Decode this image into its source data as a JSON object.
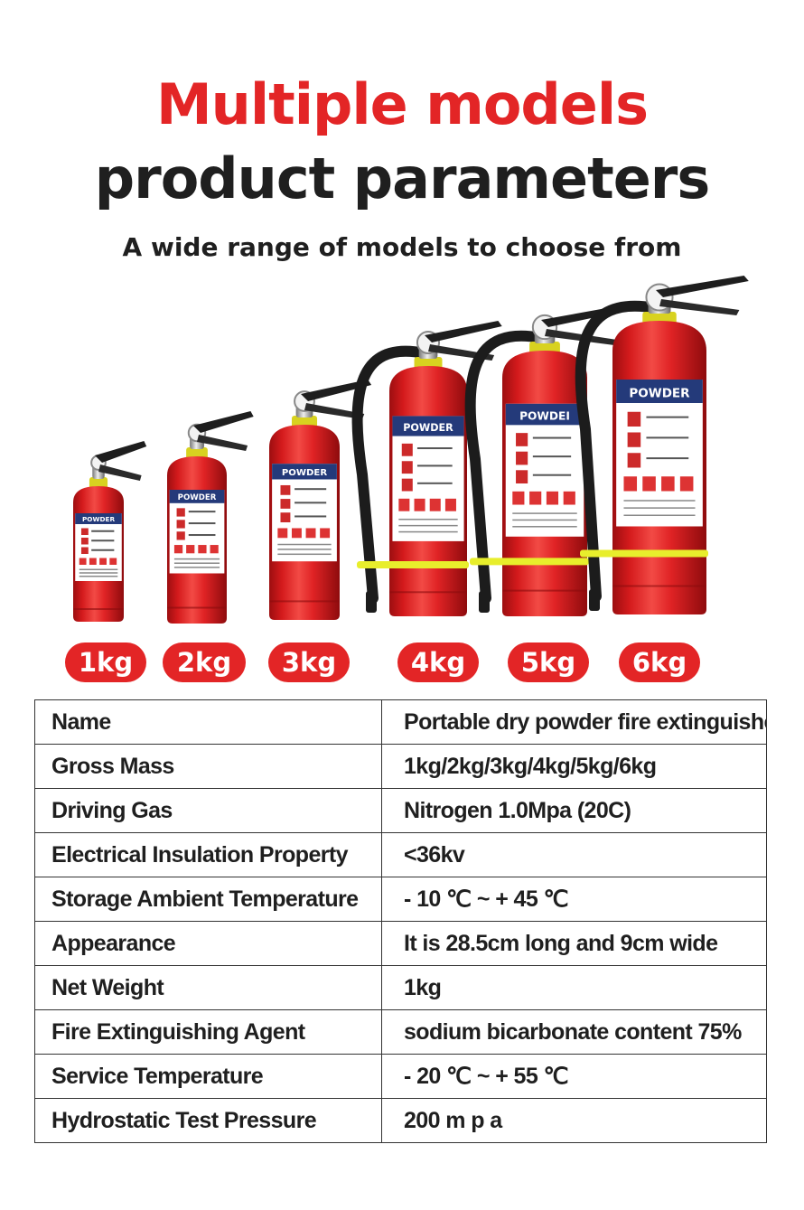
{
  "header": {
    "title_line1": "Multiple models",
    "title_line2": "product parameters",
    "subtitle": "A wide range of models to choose from"
  },
  "products": [
    {
      "size_label": "1kg",
      "label_text": "POWDER"
    },
    {
      "size_label": "2kg",
      "label_text": "POWDER"
    },
    {
      "size_label": "3kg",
      "label_text": "POWDER"
    },
    {
      "size_label": "4kg",
      "label_text": "POWDER"
    },
    {
      "size_label": "5kg",
      "label_text": "POWDEI"
    },
    {
      "size_label": "6kg",
      "label_text": "POWDER"
    }
  ],
  "parameters": [
    {
      "name": "Name",
      "value": "Portable dry powder fire extinguisher"
    },
    {
      "name": "Gross Mass",
      "value": "1kg/2kg/3kg/4kg/5kg/6kg"
    },
    {
      "name": "Driving Gas",
      "value": "Nitrogen 1.0Mpa (20C)"
    },
    {
      "name": "Electrical Insulation Property",
      "value": "<36kv"
    },
    {
      "name": "Storage Ambient Temperature",
      "value": "- 10 ℃ ~ + 45 ℃"
    },
    {
      "name": "Appearance",
      "value": "It is 28.5cm long and 9cm wide"
    },
    {
      "name": "Net Weight",
      "value": "1kg"
    },
    {
      "name": "Fire Extinguishing Agent",
      "value": "sodium bicarbonate content 75%"
    },
    {
      "name": "Service Temperature",
      "value": "- 20 ℃ ~ + 55 ℃"
    },
    {
      "name": "Hydrostatic Test Pressure",
      "value": "200 m p a"
    }
  ],
  "colors": {
    "accent_red": "#e32526",
    "cylinder_red": "#dd1d1f",
    "label_navy": "#243a7a",
    "hose_black": "#1c1c1c",
    "strap_yellow": "#e8ee2c"
  }
}
